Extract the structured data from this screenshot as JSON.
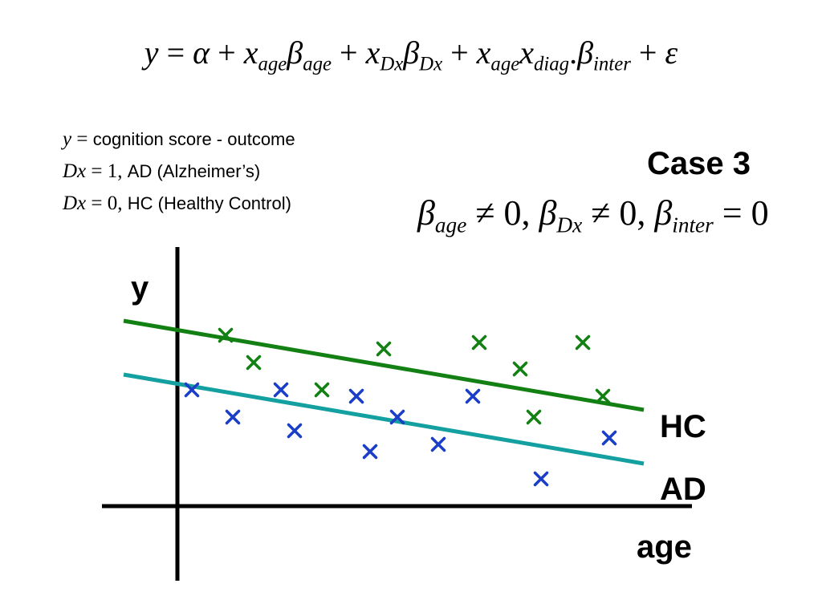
{
  "equation": {
    "y": "y",
    "eq": " = ",
    "alpha": "α",
    "plus": " + ",
    "x": "x",
    "beta": "β",
    "eps": "ε",
    "sub_age": "age",
    "sub_dx": "Dx",
    "sub_diag": "diag",
    "dot": ".",
    "sub_inter": "inter"
  },
  "definitions": {
    "y_sym": "y",
    "y_eq": " = ",
    "y_text": "cognition score - outcome",
    "ad_sym": "Dx",
    "ad_eq": " = 1, ",
    "ad_text": "AD (Alzheimer’s)",
    "hc_sym": "Dx",
    "hc_eq": " = 0, ",
    "hc_text": "HC (Healthy Control)"
  },
  "case": {
    "title": "Case 3",
    "beta": "β",
    "sub_age": "age",
    "sub_dx": "Dx",
    "sub_inter": "inter",
    "neq0": " ≠ 0, ",
    "eq0": " = 0"
  },
  "plot": {
    "y_axis_label": "y",
    "x_axis_label": "age",
    "hc_label": "HC",
    "ad_label": "AD",
    "colors": {
      "axis": "#000000",
      "hc_line": "#138013",
      "ad_line": "#14a0a0",
      "hc_marker": "#138013",
      "ad_marker": "#1a3ec8"
    }
  }
}
